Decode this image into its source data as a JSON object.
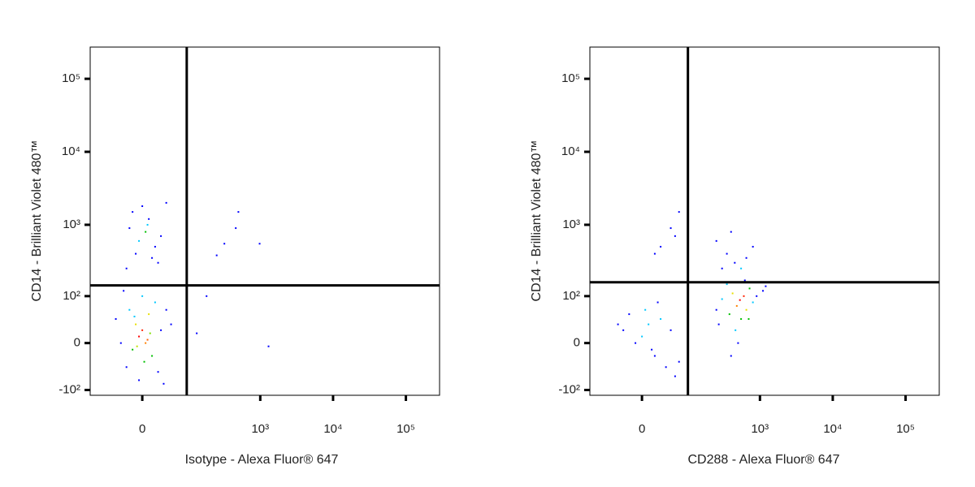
{
  "chart_data": [
    {
      "type": "scatter",
      "scale": "biexponential",
      "x_label": "Isotype - Alexa Fluor® 647",
      "y_label": "CD14 - Brilliant Violet 480™",
      "xlim": [
        -120,
        290000
      ],
      "ylim": [
        -120,
        272000
      ],
      "xticks": [
        0,
        {
          "value": 1000,
          "label": "10³"
        },
        {
          "value": 10000,
          "label": "10⁴"
        },
        {
          "value": 100000,
          "label": "10⁵"
        }
      ],
      "yticks": [
        {
          "value": -100,
          "label": "-10²"
        },
        0,
        {
          "value": 100,
          "label": "10²"
        },
        {
          "value": 1000,
          "label": "10³"
        },
        {
          "value": 10000,
          "label": "10⁴"
        },
        {
          "value": 100000,
          "label": "10⁵"
        }
      ],
      "gate_x": 92,
      "gate_y": 144,
      "x": [
        -5,
        0,
        5,
        -10,
        10,
        -15,
        15,
        -20,
        20,
        0,
        -25,
        25,
        30,
        -35,
        40,
        -30,
        35,
        -5,
        50,
        -45,
        8,
        -8,
        12,
        -12,
        3,
        -5,
        5,
        -10,
        10,
        0,
        20,
        -20,
        25,
        -15,
        15,
        30,
        -25,
        40,
        8,
        180,
        130,
        500,
        460,
        320,
        980,
        1300,
        250
      ],
      "y": [
        10,
        20,
        0,
        30,
        50,
        -10,
        -20,
        60,
        80,
        100,
        -40,
        -50,
        20,
        0,
        60,
        120,
        -80,
        -70,
        30,
        40,
        5,
        -5,
        15,
        45,
        -30,
        600,
        800,
        400,
        1200,
        1800,
        500,
        900,
        300,
        1500,
        350,
        700,
        250,
        2000,
        1000,
        100,
        15,
        1500,
        900,
        550,
        550,
        -5,
        380
      ],
      "colors": [
        "#ff0000",
        "#ff2000",
        "#ff8000",
        "#e8e000",
        "#e8e000",
        "#00c000",
        "#00c000",
        "#00c8ff",
        "#00c8ff",
        "#00c8ff",
        "#0000ff",
        "#0000ff",
        "#0000ff",
        "#0000ff",
        "#0000ff",
        "#0000ff",
        "#0000ff",
        "#0000ff",
        "#0000ff",
        "#0000ff",
        "#ff6000",
        "#c0e000",
        "#80e000",
        "#00c8ff",
        "#00c000",
        "#00c8ff",
        "#00c000",
        "#0000ff",
        "#0000ff",
        "#0000ff",
        "#0000ff",
        "#0000ff",
        "#0000ff",
        "#0000ff",
        "#0000ff",
        "#0000ff",
        "#0000ff",
        "#0000ff",
        "#00c8ff",
        "#0000ff",
        "#0000ff",
        "#0000ff",
        "#0000ff",
        "#0000ff",
        "#0000ff",
        "#0000ff",
        "#0000ff"
      ]
    },
    {
      "type": "scatter",
      "scale": "biexponential",
      "x_label": "CD288 - Alexa Fluor® 647",
      "y_label": "CD14 - Brilliant Violet 480™",
      "xlim": [
        -120,
        290000
      ],
      "ylim": [
        -120,
        272000
      ],
      "xticks": [
        0,
        {
          "value": 1000,
          "label": "10³"
        },
        {
          "value": 10000,
          "label": "10⁴"
        },
        {
          "value": 100000,
          "label": "10⁵"
        }
      ],
      "yticks": [
        {
          "value": -100,
          "label": "-10²"
        },
        0,
        {
          "value": 100,
          "label": "10²"
        },
        {
          "value": 1000,
          "label": "10³"
        },
        {
          "value": 10000,
          "label": "10⁴"
        },
        {
          "value": 100000,
          "label": "10⁵"
        }
      ],
      "gate_x": 97,
      "gate_y": 160,
      "x": [
        0,
        10,
        -10,
        20,
        30,
        -20,
        40,
        50,
        -30,
        60,
        5,
        15,
        70,
        -40,
        25,
        530,
        480,
        600,
        420,
        650,
        380,
        720,
        550,
        300,
        800,
        460,
        350,
        900,
        270,
        1100,
        500,
        620,
        400,
        250,
        1200,
        700,
        450,
        350,
        550,
        250,
        650,
        400,
        800,
        300,
        30,
        50,
        70,
        20,
        60
      ],
      "y": [
        10,
        30,
        0,
        -20,
        40,
        50,
        -40,
        20,
        20,
        -60,
        60,
        -10,
        -30,
        30,
        80,
        87,
        70,
        100,
        110,
        60,
        50,
        130,
        40,
        90,
        80,
        20,
        150,
        100,
        30,
        120,
        0,
        170,
        -20,
        60,
        140,
        40,
        300,
        400,
        250,
        600,
        350,
        800,
        500,
        250,
        500,
        900,
        1500,
        400,
        700
      ],
      "colors": [
        "#00c8ff",
        "#00c8ff",
        "#0000ff",
        "#0000ff",
        "#00c8ff",
        "#0000ff",
        "#0000ff",
        "#0000ff",
        "#0000ff",
        "#0000ff",
        "#00c8ff",
        "#0000ff",
        "#0000ff",
        "#0000ff",
        "#0000ff",
        "#ff0000",
        "#ff8000",
        "#ff2000",
        "#e8e000",
        "#e8e000",
        "#00c000",
        "#00c000",
        "#00c000",
        "#00c8ff",
        "#00c8ff",
        "#00c8ff",
        "#00c8ff",
        "#0000ff",
        "#0000ff",
        "#0000ff",
        "#0000ff",
        "#0000ff",
        "#0000ff",
        "#0000ff",
        "#0000ff",
        "#00c000",
        "#0000ff",
        "#0000ff",
        "#00c8ff",
        "#0000ff",
        "#0000ff",
        "#0000ff",
        "#0000ff",
        "#0000ff",
        "#0000ff",
        "#0000ff",
        "#0000ff",
        "#0000ff",
        "#0000ff"
      ]
    }
  ]
}
